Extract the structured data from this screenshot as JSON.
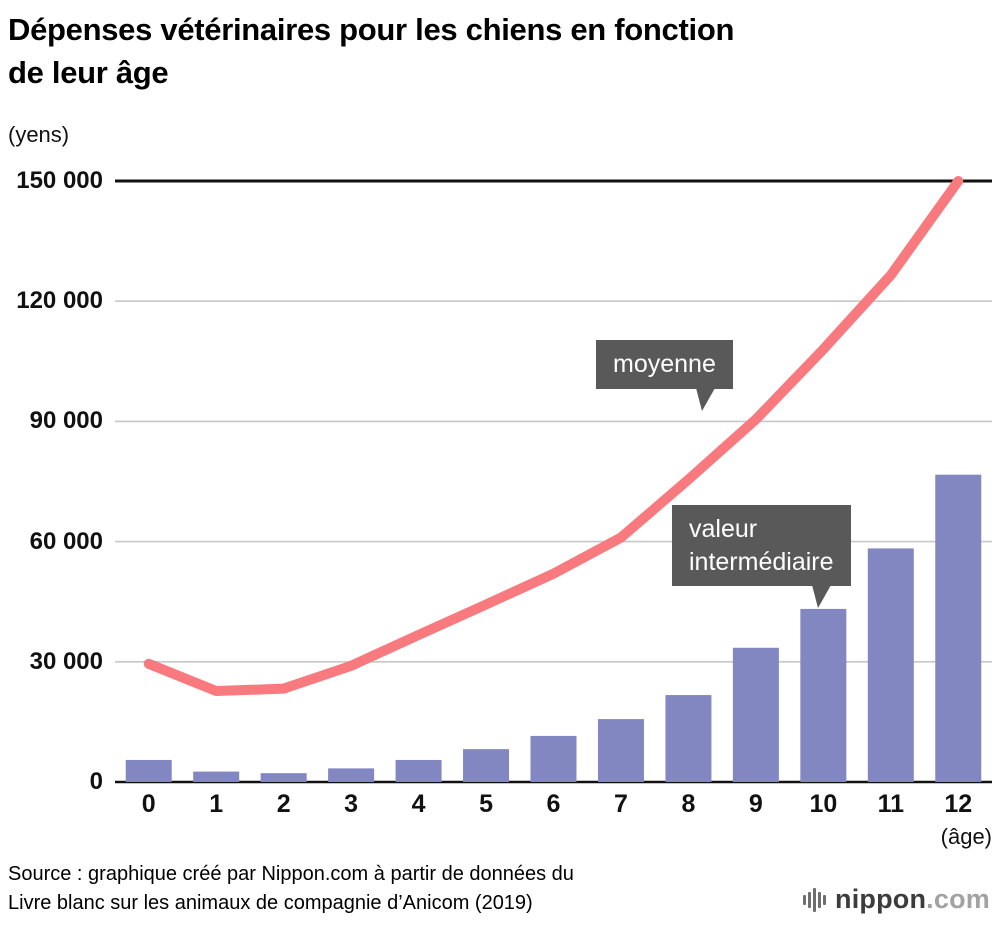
{
  "title_line1": "Dépenses vétérinaires pour les chiens en fonction",
  "title_line2": "de leur âge",
  "y_unit_label": "(yens)",
  "x_unit_label": "(âge)",
  "callouts": {
    "mean": "moyenne",
    "median_line1": "valeur",
    "median_line2": "intermédiaire"
  },
  "source_line1": "Source : graphique créé par Nippon.com à partir de données du",
  "source_line2": "Livre blanc sur les animaux de compagnie d’Anicom (2019)",
  "logo": {
    "name": "nippon",
    "tld": ".com"
  },
  "colors": {
    "bar": "#8287c1",
    "line": "#f8797e",
    "callout_bg": "#595959",
    "grid": "#c8c8c8",
    "axis": "#111111"
  },
  "chart_data": {
    "type": "bar+line",
    "title": "Dépenses vétérinaires pour les chiens en fonction de leur âge",
    "categories": [
      "0",
      "1",
      "2",
      "3",
      "4",
      "5",
      "6",
      "7",
      "8",
      "9",
      "10",
      "11",
      "12"
    ],
    "series": [
      {
        "name": "moyenne",
        "type": "line",
        "color": "#f8797e",
        "values": [
          29500,
          22700,
          23300,
          29000,
          36700,
          44300,
          52000,
          61000,
          75500,
          90500,
          108000,
          126500,
          150000
        ]
      },
      {
        "name": "valeur intermédiaire",
        "type": "bar",
        "color": "#8287c1",
        "values": [
          5500,
          2600,
          2200,
          3400,
          5500,
          8200,
          11500,
          15700,
          21700,
          33500,
          43200,
          58300,
          76700
        ]
      }
    ],
    "ylim": [
      0,
      150000
    ],
    "yticks": [
      {
        "value": 0,
        "label": "0"
      },
      {
        "value": 30000,
        "label": "30 000"
      },
      {
        "value": 60000,
        "label": "60 000"
      },
      {
        "value": 90000,
        "label": "90 000"
      },
      {
        "value": 120000,
        "label": "120 000"
      },
      {
        "value": 150000,
        "label": "150 000"
      }
    ],
    "xlabel": "(âge)",
    "ylabel": "(yens)",
    "grid": true,
    "legend": "callouts"
  }
}
